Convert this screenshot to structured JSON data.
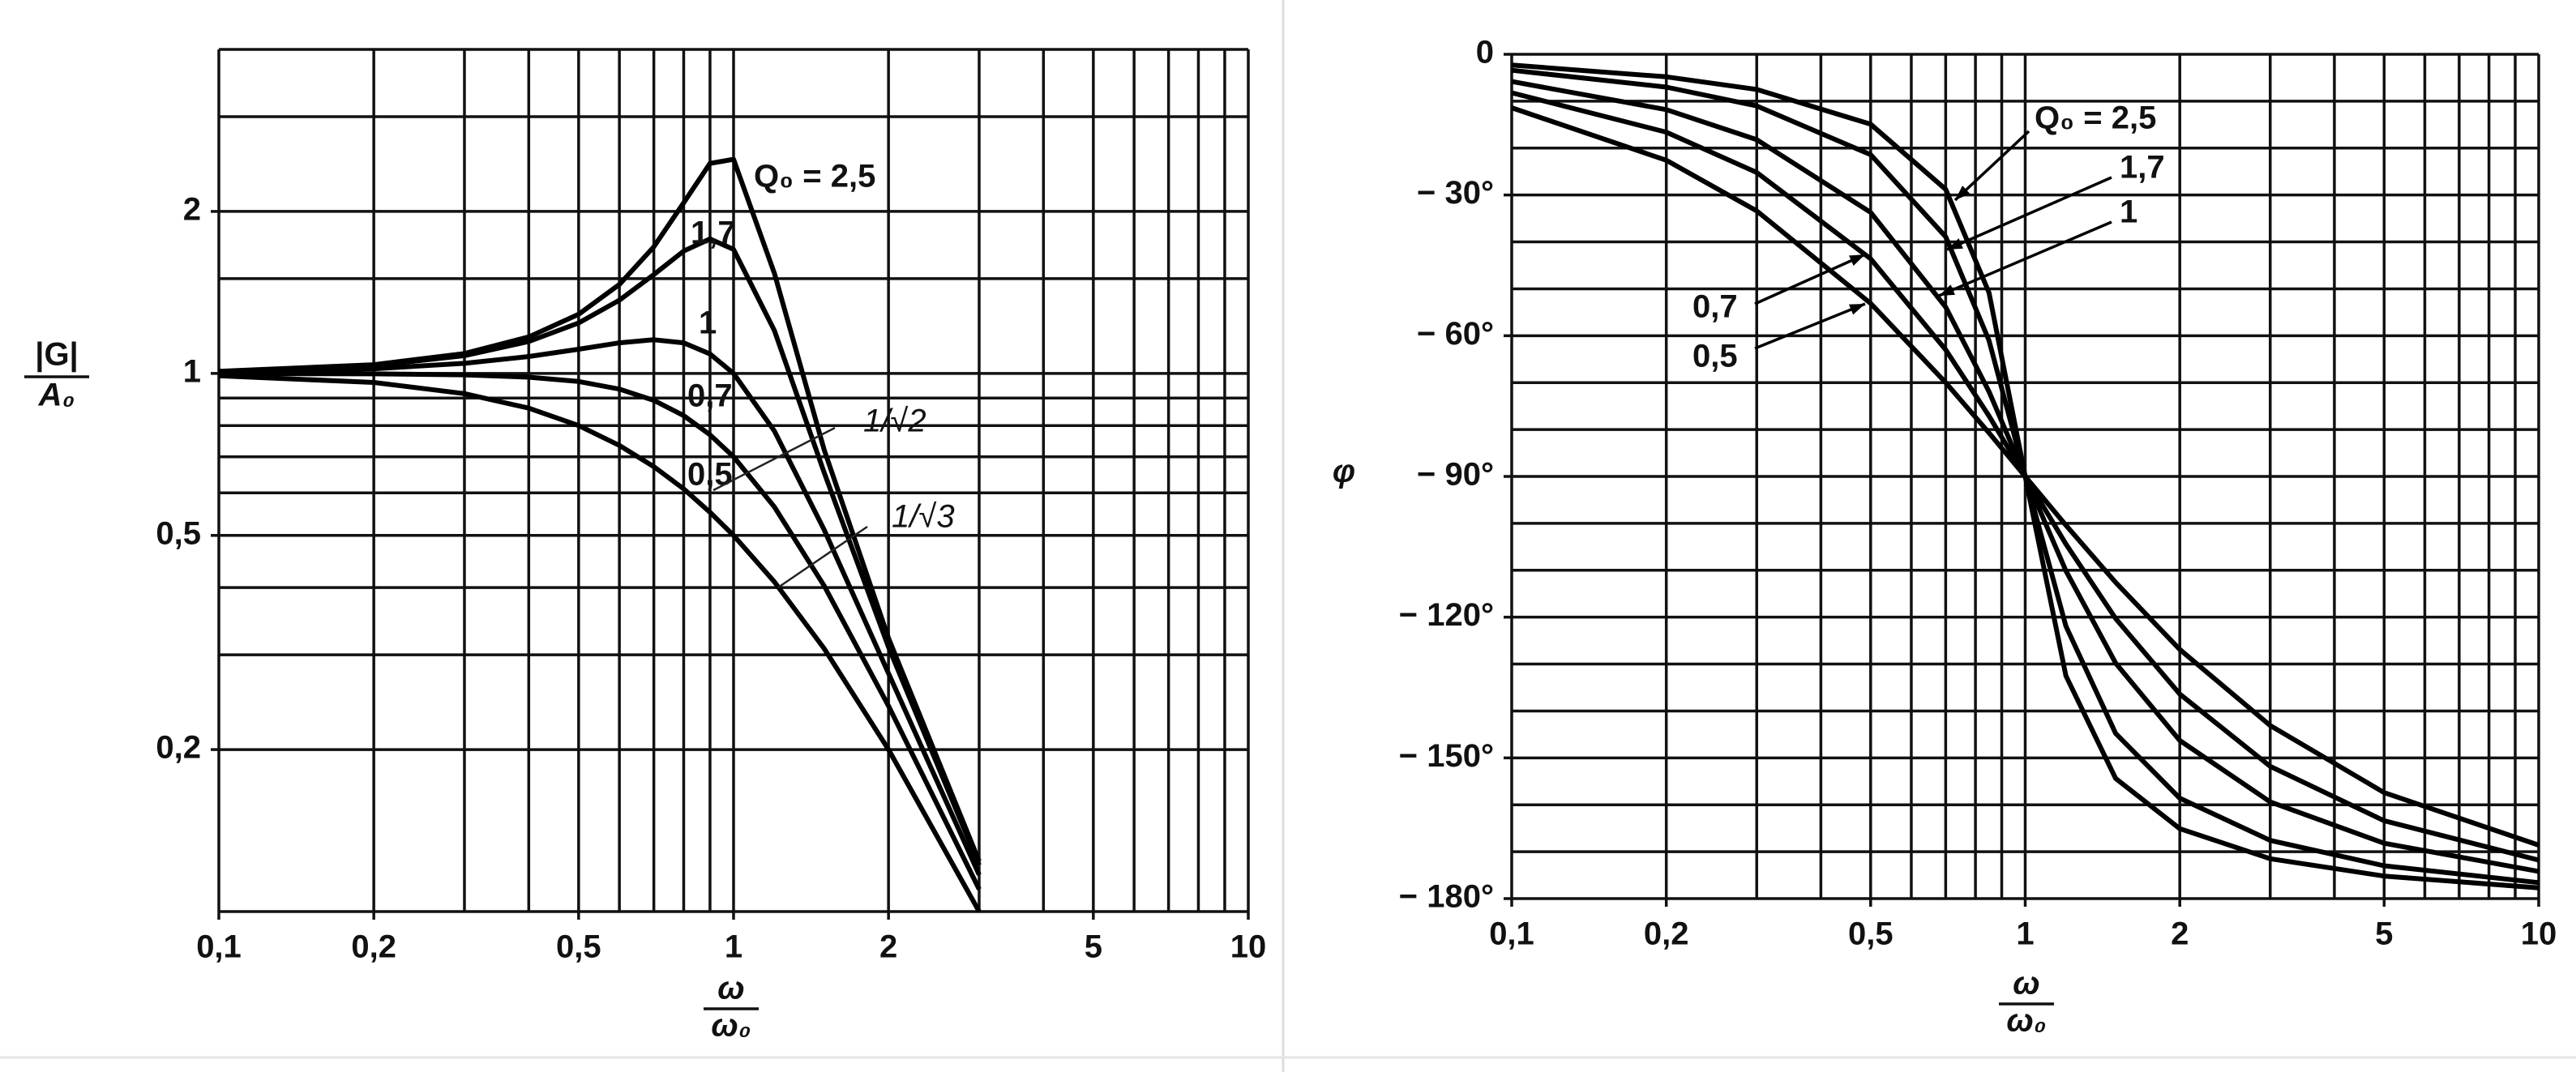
{
  "chart_data": [
    {
      "type": "line",
      "xlog": true,
      "ylog": true,
      "grid": true,
      "ylabel": [
        "|G|",
        "A₀"
      ],
      "xlabel": [
        "ω",
        "ω₀"
      ],
      "xlim": [
        0.1,
        10
      ],
      "ylim": [
        0.1,
        4
      ],
      "xticks": [
        {
          "value": 0.1,
          "label": "0,1"
        },
        {
          "value": 0.2,
          "label": "0,2"
        },
        {
          "value": 0.5,
          "label": "0,5"
        },
        1,
        2,
        5,
        10
      ],
      "yticks": [
        {
          "value": 0.2,
          "label": "0,2"
        },
        {
          "value": 0.5,
          "label": "0,5"
        },
        1,
        2
      ],
      "xgrid": [
        0.1,
        0.2,
        0.3,
        0.4,
        0.5,
        0.6,
        0.7,
        0.8,
        0.9,
        1,
        2,
        3,
        4,
        5,
        6,
        7,
        8,
        9,
        10
      ],
      "ygrid": [
        0.1,
        0.2,
        0.3,
        0.4,
        0.5,
        0.6,
        0.7,
        0.8,
        0.9,
        1,
        1.5,
        2,
        3,
        4
      ],
      "x": [
        0.1,
        0.2,
        0.3,
        0.4,
        0.5,
        0.6,
        0.7,
        0.8,
        0.9,
        1,
        1.2,
        1.5,
        2,
        3
      ],
      "series": [
        {
          "name": "Q₀ = 2,5",
          "color": "#000000",
          "values": [
            1.009,
            1.038,
            1.089,
            1.169,
            1.288,
            1.463,
            1.719,
            2.076,
            2.456,
            2.5,
            1.536,
            0.721,
            0.322,
            0.124
          ]
        },
        {
          "name": "1,7",
          "color": "#000000",
          "values": [
            1.008,
            1.034,
            1.079,
            1.146,
            1.241,
            1.368,
            1.526,
            1.688,
            1.778,
            1.7,
            1.202,
            0.654,
            0.31,
            0.122
          ]
        },
        {
          "name": "1",
          "color": "#000000",
          "values": [
            1.005,
            1.02,
            1.044,
            1.075,
            1.109,
            1.14,
            1.155,
            1.14,
            1.087,
            1.0,
            0.782,
            0.512,
            0.277,
            0.117
          ]
        },
        {
          "name": "0,7",
          "color": "#000000",
          "values": [
            1.0,
            0.998,
            0.994,
            0.984,
            0.966,
            0.935,
            0.891,
            0.835,
            0.769,
            0.7,
            0.565,
            0.403,
            0.241,
            0.11
          ]
        },
        {
          "name": "0,5",
          "color": "#000000",
          "values": [
            0.99,
            0.962,
            0.917,
            0.862,
            0.8,
            0.735,
            0.671,
            0.61,
            0.552,
            0.5,
            0.41,
            0.308,
            0.2,
            0.1
          ]
        }
      ],
      "annotations": [
        "1/√2",
        "1/√3"
      ]
    },
    {
      "type": "line",
      "xlog": true,
      "ylog": false,
      "grid": true,
      "ylabel": [
        "φ"
      ],
      "xlabel": [
        "ω",
        "ω₀"
      ],
      "xlim": [
        0.1,
        10
      ],
      "ylim": [
        -180,
        0
      ],
      "xticks": [
        {
          "value": 0.1,
          "label": "0,1"
        },
        {
          "value": 0.2,
          "label": "0,2"
        },
        {
          "value": 0.5,
          "label": "0,5"
        },
        1,
        2,
        5,
        10
      ],
      "yticks": [
        0,
        {
          "value": -30,
          "label": "− 30°"
        },
        {
          "value": -60,
          "label": "− 60°"
        },
        {
          "value": -90,
          "label": "− 90°"
        },
        {
          "value": -120,
          "label": "− 120°"
        },
        {
          "value": -150,
          "label": "− 150°"
        },
        {
          "value": -180,
          "label": "− 180°"
        }
      ],
      "xgrid": [
        0.1,
        0.2,
        0.3,
        0.4,
        0.5,
        0.6,
        0.7,
        0.8,
        0.9,
        1,
        2,
        3,
        4,
        5,
        6,
        7,
        8,
        9,
        10
      ],
      "ygrid": [
        -180,
        -170,
        -160,
        -150,
        -140,
        -130,
        -120,
        -110,
        -100,
        -90,
        -80,
        -70,
        -60,
        -50,
        -40,
        -30,
        -20,
        -10,
        0
      ],
      "x": [
        0.1,
        0.2,
        0.3,
        0.5,
        0.7,
        0.85,
        1,
        1.2,
        1.5,
        2,
        3,
        5,
        10
      ],
      "series": [
        {
          "name": "Q₀ = 2,5",
          "color": "#000000",
          "values": [
            -2.3,
            -4.8,
            -7.5,
            -14.9,
            -28.8,
            -50.8,
            -90,
            -132.5,
            -154.4,
            -165.1,
            -171.5,
            -175.2,
            -177.7
          ]
        },
        {
          "name": "1,7",
          "color": "#000000",
          "values": [
            -3.4,
            -7.0,
            -11.0,
            -21.4,
            -38.9,
            -61.0,
            -90,
            -121.9,
            -144.8,
            -158.6,
            -167.6,
            -173.0,
            -176.6
          ]
        },
        {
          "name": "1",
          "color": "#000000",
          "values": [
            -5.8,
            -11.8,
            -18.2,
            -33.7,
            -53.9,
            -71.9,
            -90,
            -110.1,
            -129.8,
            -146.3,
            -159.4,
            -168.2,
            -174.2
          ]
        },
        {
          "name": "0,7",
          "color": "#000000",
          "values": [
            -8.2,
            -16.6,
            -25.2,
            -43.6,
            -63.0,
            -77.1,
            -90,
            -104.4,
            -120.3,
            -136.4,
            -151.8,
            -163.4,
            -171.8
          ]
        },
        {
          "name": "0,5",
          "color": "#000000",
          "values": [
            -11.4,
            -22.6,
            -33.4,
            -53.1,
            -70.0,
            -80.7,
            -90,
            -100.4,
            -112.6,
            -126.9,
            -143.1,
            -157.4,
            -168.6
          ]
        }
      ]
    }
  ]
}
